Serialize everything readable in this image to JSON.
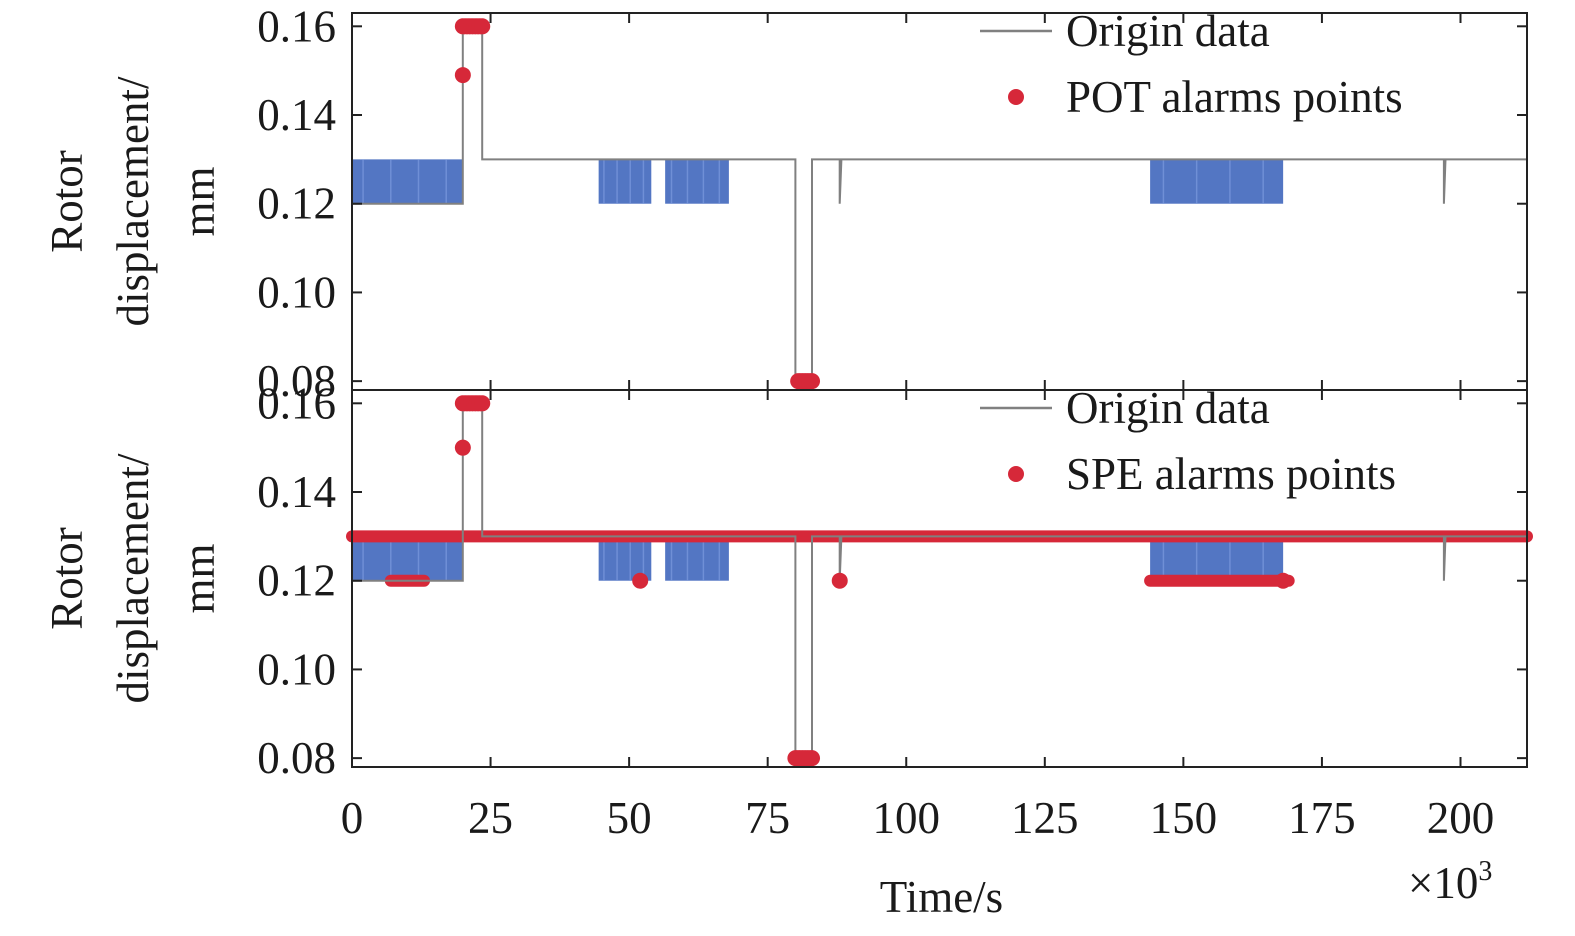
{
  "chart_data": [
    {
      "type": "line",
      "ylabel_line1": "Rotor",
      "ylabel_line2": "displacement/",
      "ylabel_line3": "mm",
      "xlim": [
        0,
        212
      ],
      "ylim": [
        0.078,
        0.163
      ],
      "yticks": [
        0.08,
        0.1,
        0.12,
        0.14,
        0.16
      ],
      "ytick_labels": [
        "0.08",
        "0.10",
        "0.12",
        "0.14",
        "0.16"
      ],
      "legend": {
        "placement": "top-right",
        "entries": [
          "Origin data",
          "POT alarms points"
        ]
      },
      "series": [
        {
          "name": "Origin data",
          "color": "#808080",
          "points": [
            [
              0,
              0.12
            ],
            [
              20,
              0.12
            ],
            [
              20,
              0.16
            ],
            [
              23.5,
              0.16
            ],
            [
              23.5,
              0.13
            ],
            [
              80,
              0.13
            ],
            [
              80,
              0.08
            ],
            [
              83,
              0.08
            ],
            [
              83,
              0.13
            ],
            [
              88,
              0.13
            ],
            [
              88,
              0.12
            ],
            [
              88.3,
              0.13
            ],
            [
              197,
              0.13
            ],
            [
              197,
              0.12
            ],
            [
              197.3,
              0.13
            ],
            [
              212,
              0.13
            ]
          ]
        }
      ],
      "oscillation_bands": [
        {
          "x0": 0,
          "x1": 20,
          "low": 0.12,
          "high": 0.13,
          "color": "#4a6fc0"
        },
        {
          "x0": 44.5,
          "x1": 54,
          "low": 0.12,
          "high": 0.13,
          "color": "#4a6fc0"
        },
        {
          "x0": 56.5,
          "x1": 68,
          "low": 0.12,
          "high": 0.13,
          "color": "#4a6fc0"
        },
        {
          "x0": 144,
          "x1": 168,
          "low": 0.12,
          "high": 0.13,
          "color": "#4a6fc0"
        }
      ],
      "alarm_points": {
        "name": "POT alarms points",
        "color": "#d62839",
        "points": [
          [
            20,
            0.149
          ],
          [
            20,
            0.16
          ],
          [
            20.5,
            0.16
          ],
          [
            21,
            0.16
          ],
          [
            21.5,
            0.16
          ],
          [
            22,
            0.16
          ],
          [
            22.5,
            0.16
          ],
          [
            23,
            0.16
          ],
          [
            23.5,
            0.16
          ],
          [
            80.5,
            0.08
          ],
          [
            81,
            0.08
          ],
          [
            81.5,
            0.08
          ],
          [
            82,
            0.08
          ],
          [
            82.5,
            0.08
          ],
          [
            83,
            0.08
          ]
        ]
      }
    },
    {
      "type": "line",
      "ylabel_line1": "Rotor",
      "ylabel_line2": "displacement/",
      "ylabel_line3": "mm",
      "xlabel": "Time/s",
      "x_multiplier_base": "×10",
      "x_multiplier_exp": "3",
      "xlim": [
        0,
        212
      ],
      "ylim": [
        0.078,
        0.163
      ],
      "xticks": [
        0,
        25,
        50,
        75,
        100,
        125,
        150,
        175,
        200
      ],
      "xtick_labels": [
        "0",
        "25",
        "50",
        "75",
        "100",
        "125",
        "150",
        "175",
        "200"
      ],
      "yticks": [
        0.08,
        0.1,
        0.12,
        0.14,
        0.16
      ],
      "ytick_labels": [
        "0.08",
        "0.10",
        "0.12",
        "0.14",
        "0.16"
      ],
      "legend": {
        "placement": "top-right",
        "entries": [
          "Origin data",
          "SPE alarms points"
        ]
      },
      "series": [
        {
          "name": "Origin data",
          "color": "#808080",
          "points": [
            [
              0,
              0.12
            ],
            [
              20,
              0.12
            ],
            [
              20,
              0.16
            ],
            [
              23.5,
              0.16
            ],
            [
              23.5,
              0.13
            ],
            [
              80,
              0.13
            ],
            [
              80,
              0.08
            ],
            [
              83,
              0.08
            ],
            [
              83,
              0.13
            ],
            [
              88,
              0.13
            ],
            [
              88,
              0.12
            ],
            [
              88.3,
              0.13
            ],
            [
              197,
              0.13
            ],
            [
              197,
              0.12
            ],
            [
              197.3,
              0.13
            ],
            [
              212,
              0.13
            ]
          ]
        }
      ],
      "oscillation_bands": [
        {
          "x0": 0,
          "x1": 20,
          "low": 0.12,
          "high": 0.13,
          "color": "#4a6fc0"
        },
        {
          "x0": 44.5,
          "x1": 54,
          "low": 0.12,
          "high": 0.13,
          "color": "#4a6fc0"
        },
        {
          "x0": 56.5,
          "x1": 68,
          "low": 0.12,
          "high": 0.13,
          "color": "#4a6fc0"
        },
        {
          "x0": 144,
          "x1": 168,
          "low": 0.12,
          "high": 0.13,
          "color": "#4a6fc0"
        }
      ],
      "alarm_bands": [
        {
          "x0": 0,
          "x1": 212,
          "y": 0.13,
          "color": "#d62839"
        },
        {
          "x0": 7,
          "x1": 13,
          "y": 0.12,
          "color": "#d62839"
        },
        {
          "x0": 144,
          "x1": 169,
          "y": 0.12,
          "color": "#d62839"
        }
      ],
      "alarm_points": {
        "name": "SPE alarms points",
        "color": "#d62839",
        "points": [
          [
            20,
            0.15
          ],
          [
            20,
            0.16
          ],
          [
            20.5,
            0.16
          ],
          [
            21,
            0.16
          ],
          [
            21.5,
            0.16
          ],
          [
            22,
            0.16
          ],
          [
            22.5,
            0.16
          ],
          [
            23,
            0.16
          ],
          [
            23.5,
            0.16
          ],
          [
            52,
            0.12
          ],
          [
            80,
            0.08
          ],
          [
            80.5,
            0.08
          ],
          [
            81,
            0.08
          ],
          [
            81.5,
            0.08
          ],
          [
            82,
            0.08
          ],
          [
            82.5,
            0.08
          ],
          [
            83,
            0.08
          ],
          [
            88,
            0.12
          ],
          [
            168,
            0.12
          ]
        ]
      }
    }
  ]
}
